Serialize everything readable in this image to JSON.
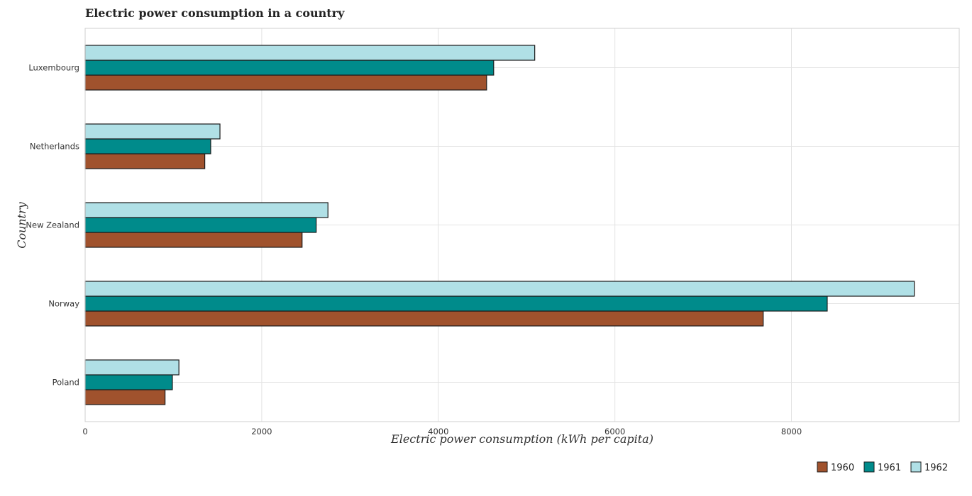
{
  "chart_data": {
    "type": "bar",
    "orientation": "horizontal",
    "title": "Electric power consumption in a country",
    "xlabel": "Electric power consumption (kWh per capita)",
    "ylabel": "Country",
    "categories": [
      "Luxembourg",
      "Netherlands",
      "New Zealand",
      "Norway",
      "Poland"
    ],
    "series": [
      {
        "name": "1960",
        "color": "#a0522d",
        "values": [
          4547,
          1355,
          2457,
          7680,
          905
        ]
      },
      {
        "name": "1961",
        "color": "#008b8b",
        "values": [
          4627,
          1422,
          2617,
          8405,
          988
        ]
      },
      {
        "name": "1962",
        "color": "#b0e0e6",
        "values": [
          5092,
          1527,
          2750,
          9391,
          1062
        ]
      }
    ],
    "xlim": [
      0,
      9900
    ],
    "xticks": [
      0,
      2000,
      4000,
      6000,
      8000
    ],
    "grid": true,
    "legend_position": "bottom-right"
  }
}
